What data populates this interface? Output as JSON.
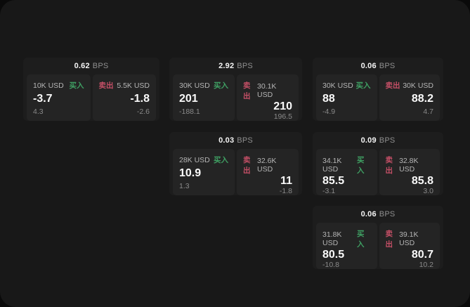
{
  "theme": {
    "page_bg": "#0a0a0a",
    "surface_bg": "#181818",
    "card_bg": "#1d1d1d",
    "panel_bg": "#242424",
    "buy_color": "#3fa063",
    "sell_color": "#c44f66",
    "value_color": "#fafafa",
    "label_color": "#b5b5b5",
    "muted_color": "#8a8a8a"
  },
  "labels": {
    "buy": "买入",
    "sell": "卖出",
    "bps_unit": "BPS"
  },
  "cards": [
    {
      "bps": "0.62",
      "buy": {
        "size": "10K USD",
        "value": "-3.7",
        "sub": "4.3"
      },
      "sell": {
        "size": "5.5K USD",
        "value": "-1.8",
        "sub": "-2.6"
      }
    },
    {
      "bps": "2.92",
      "buy": {
        "size": "30K USD",
        "value": "201",
        "sub": "-188.1"
      },
      "sell": {
        "size": "30.1K USD",
        "value": "210",
        "sub": "196.5"
      }
    },
    {
      "bps": "0.06",
      "buy": {
        "size": "30K USD",
        "value": "88",
        "sub": "-4.9"
      },
      "sell": {
        "size": "30K USD",
        "value": "88.2",
        "sub": "4.7"
      }
    },
    {
      "bps": "0.03",
      "buy": {
        "size": "28K USD",
        "value": "10.9",
        "sub": "1.3"
      },
      "sell": {
        "size": "32.6K USD",
        "value": "11",
        "sub": "-1.8"
      }
    },
    {
      "bps": "0.09",
      "buy": {
        "size": "34.1K USD",
        "value": "85.5",
        "sub": "-3.1"
      },
      "sell": {
        "size": "32.8K USD",
        "value": "85.8",
        "sub": "3.0"
      }
    },
    {
      "bps": "0.06",
      "buy": {
        "size": "31.8K USD",
        "value": "80.5",
        "sub": "-10.8"
      },
      "sell": {
        "size": "39.1K USD",
        "value": "80.7",
        "sub": "10.2"
      }
    }
  ]
}
